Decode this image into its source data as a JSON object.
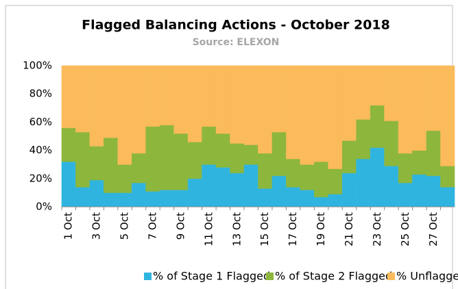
{
  "chart_data": {
    "type": "stacked_bar",
    "title": "Flagged Balancing Actions - October 2018",
    "subtitle": "Source: ELEXON",
    "categories": [
      "1 Oct",
      null,
      "3 Oct",
      null,
      "5 Oct",
      null,
      "7 Oct",
      null,
      "9 Oct",
      null,
      "11 Oct",
      null,
      "13 Oct",
      null,
      "15 Oct",
      null,
      "17 Oct",
      null,
      "19 Oct",
      null,
      "21 Oct",
      null,
      "23 Oct",
      null,
      "25 Oct",
      null,
      "27 Oct",
      null
    ],
    "series": [
      {
        "name": "% of Stage 1 Flagged",
        "color": "#2fb4e0",
        "values": [
          32,
          14,
          19,
          10,
          10,
          17,
          11,
          12,
          12,
          20,
          30,
          28,
          24,
          30,
          13,
          22,
          14,
          12,
          7,
          9,
          24,
          34,
          42,
          29,
          17,
          23,
          22,
          14
        ]
      },
      {
        "name": "% of Stage 2 Flagged",
        "color": "#8db63c",
        "values": [
          24,
          39,
          24,
          39,
          20,
          21,
          46,
          46,
          40,
          26,
          27,
          24,
          21,
          14,
          25,
          31,
          20,
          18,
          25,
          18,
          23,
          28,
          30,
          32,
          21,
          17,
          32,
          15
        ]
      },
      {
        "name": "% Unflagged",
        "color": "#fbbb5b",
        "values": [
          44,
          47,
          57,
          51,
          70,
          62,
          43,
          42,
          48,
          54,
          43,
          48,
          55,
          56,
          62,
          47,
          66,
          70,
          68,
          73,
          53,
          38,
          28,
          39,
          62,
          60,
          46,
          71
        ]
      }
    ],
    "ylim": [
      0,
      100
    ],
    "yticks": [
      {
        "value": 0,
        "label": "0%"
      },
      {
        "value": 20,
        "label": "20%"
      },
      {
        "value": 40,
        "label": "40%"
      },
      {
        "value": 60,
        "label": "60%"
      },
      {
        "value": 80,
        "label": "80%"
      },
      {
        "value": 100,
        "label": "100%"
      }
    ],
    "grid": true
  }
}
